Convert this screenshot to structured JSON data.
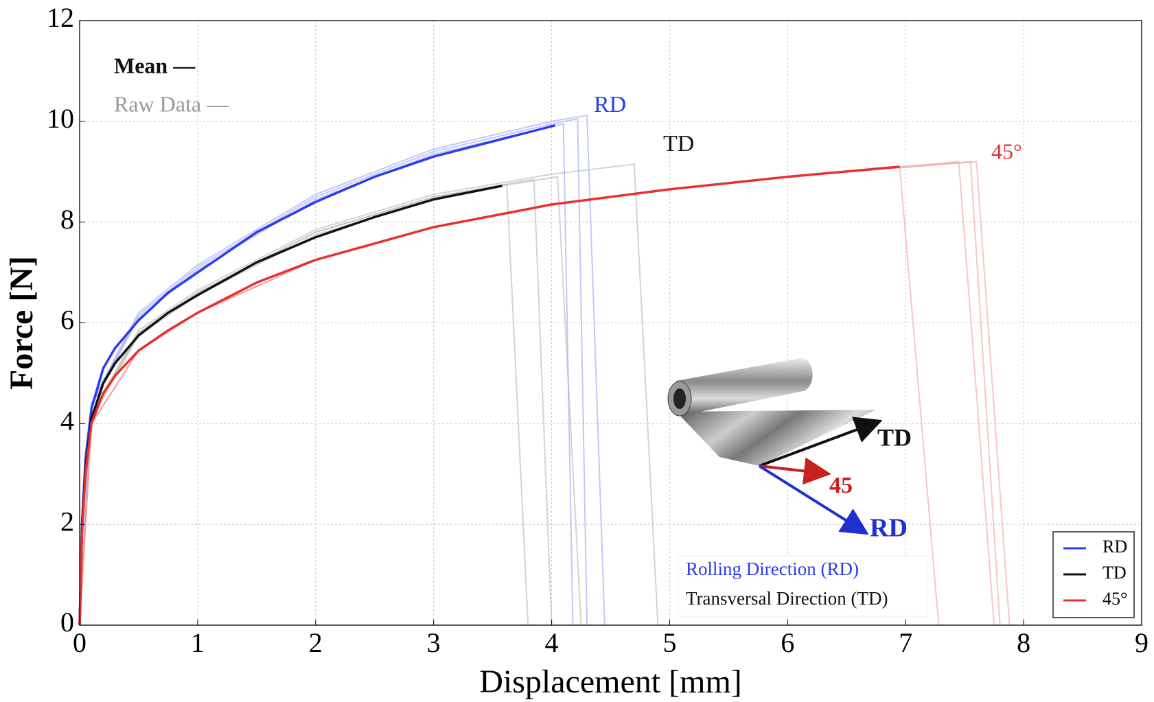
{
  "chart_data": {
    "type": "line",
    "x_label": "Displacement [mm]",
    "y_label": "Force [N]",
    "xlim": [
      0,
      9
    ],
    "ylim": [
      0,
      12
    ],
    "xticks": [
      0,
      1,
      2,
      3,
      4,
      5,
      6,
      7,
      8,
      9
    ],
    "yticks": [
      0,
      2,
      4,
      6,
      8,
      10,
      12
    ],
    "grid": true,
    "legend": "lower right",
    "series": [
      {
        "name": "RD",
        "color": "#2a3cf0",
        "x": [
          0,
          0.02,
          0.05,
          0.1,
          0.2,
          0.3,
          0.5,
          0.75,
          1,
          1.5,
          2,
          2.5,
          3,
          3.5,
          4.03
        ],
        "values": [
          0,
          2.0,
          3.3,
          4.3,
          5.1,
          5.5,
          6.05,
          6.6,
          7.0,
          7.8,
          8.4,
          8.9,
          9.3,
          9.6,
          9.92
        ]
      },
      {
        "name": "TD",
        "color": "#111111",
        "x": [
          0,
          0.02,
          0.05,
          0.1,
          0.2,
          0.3,
          0.5,
          0.75,
          1,
          1.5,
          2,
          2.5,
          3,
          3.58
        ],
        "values": [
          0,
          1.9,
          3.1,
          4.1,
          4.8,
          5.2,
          5.75,
          6.2,
          6.55,
          7.2,
          7.7,
          8.1,
          8.45,
          8.72
        ]
      },
      {
        "name": "45°",
        "color": "#e8302e",
        "x": [
          0,
          0.02,
          0.05,
          0.1,
          0.2,
          0.3,
          0.5,
          0.75,
          1,
          1.5,
          2,
          3,
          4,
          5,
          6,
          6.95
        ],
        "values": [
          0,
          1.8,
          3.0,
          4.0,
          4.6,
          4.95,
          5.45,
          5.85,
          6.2,
          6.8,
          7.25,
          7.9,
          8.35,
          8.65,
          8.9,
          9.1
        ]
      }
    ],
    "raw_series": [
      {
        "color": "#9aa3f2",
        "x": [
          0,
          0.1,
          0.5,
          1,
          2,
          3,
          4,
          4.1,
          4.18
        ],
        "values": [
          0,
          4.35,
          6.1,
          7.05,
          8.45,
          9.35,
          9.9,
          9.95,
          0
        ]
      },
      {
        "color": "#9aa3f2",
        "x": [
          0,
          0.1,
          0.5,
          1,
          2,
          3,
          4,
          4.22,
          4.3
        ],
        "values": [
          0,
          4.4,
          6.15,
          7.1,
          8.5,
          9.4,
          9.95,
          10.05,
          0
        ]
      },
      {
        "color": "#9aa3f2",
        "x": [
          0,
          0.1,
          0.5,
          1,
          2,
          3,
          4,
          4.3,
          4.45
        ],
        "values": [
          0,
          4.4,
          6.2,
          7.15,
          8.55,
          9.45,
          10.0,
          10.12,
          0
        ]
      },
      {
        "color": "#b5b5b5",
        "x": [
          0,
          0.1,
          0.5,
          1,
          2,
          3,
          3.62,
          3.8
        ],
        "values": [
          0,
          4.1,
          5.75,
          6.55,
          7.75,
          8.45,
          8.75,
          0
        ]
      },
      {
        "color": "#b5b5b5",
        "x": [
          0,
          0.1,
          0.5,
          1,
          2,
          3,
          3.85,
          4.0
        ],
        "values": [
          0,
          4.15,
          5.8,
          6.6,
          7.8,
          8.5,
          8.85,
          0
        ]
      },
      {
        "color": "#b5b5b5",
        "x": [
          0,
          0.1,
          0.5,
          1,
          2,
          3,
          4.05,
          4.25
        ],
        "values": [
          0,
          4.15,
          5.8,
          6.6,
          7.8,
          8.5,
          8.9,
          0
        ]
      },
      {
        "color": "#b5b5b5",
        "x": [
          0,
          0.1,
          0.5,
          1,
          2,
          3,
          4,
          4.7,
          4.9
        ],
        "values": [
          0,
          4.2,
          5.85,
          6.65,
          7.85,
          8.55,
          8.95,
          9.15,
          0
        ]
      },
      {
        "color": "#f2a0a0",
        "x": [
          0,
          0.1,
          0.5,
          1,
          2,
          3,
          4,
          5,
          6,
          6.95,
          7.28
        ],
        "values": [
          0,
          4.0,
          5.45,
          6.2,
          7.25,
          7.9,
          8.35,
          8.65,
          8.9,
          9.1,
          0
        ]
      },
      {
        "color": "#f2a0a0",
        "x": [
          0,
          0.1,
          0.5,
          1,
          2,
          3,
          4,
          5,
          6,
          7.45,
          7.75
        ],
        "values": [
          0,
          4.0,
          5.45,
          6.2,
          7.25,
          7.9,
          8.35,
          8.65,
          8.9,
          9.2,
          0
        ]
      },
      {
        "color": "#f2a0a0",
        "x": [
          0,
          0.1,
          0.5,
          1,
          2,
          3,
          4,
          5,
          6,
          7.55,
          7.8
        ],
        "values": [
          0,
          4.0,
          5.45,
          6.2,
          7.25,
          7.9,
          8.35,
          8.65,
          8.9,
          9.2,
          0
        ]
      },
      {
        "color": "#f2a0a0",
        "x": [
          0,
          0.1,
          0.5,
          1,
          2,
          3,
          4,
          5,
          6,
          7.6,
          7.88
        ],
        "values": [
          0,
          4.0,
          5.45,
          6.2,
          7.25,
          7.9,
          8.35,
          8.65,
          8.9,
          9.2,
          0
        ]
      }
    ],
    "annotations": [
      {
        "text": "Mean —",
        "color": "#111111"
      },
      {
        "text": "Raw Data —",
        "color": "#999999"
      },
      {
        "text": "RD",
        "color": "#2a3cf0"
      },
      {
        "text": "TD",
        "color": "#111111"
      },
      {
        "text": "45°",
        "color": "#e8302e"
      }
    ],
    "inset": {
      "arrow_labels": [
        {
          "text": "TD",
          "color": "#111111"
        },
        {
          "text": "45",
          "color": "#c8201e"
        },
        {
          "text": "RD",
          "color": "#2030d0"
        }
      ],
      "captions": [
        {
          "text": "Rolling Direction (RD)",
          "color": "#2a3cf0"
        },
        {
          "text": "Transversal Direction (TD)",
          "color": "#111111"
        }
      ]
    }
  }
}
